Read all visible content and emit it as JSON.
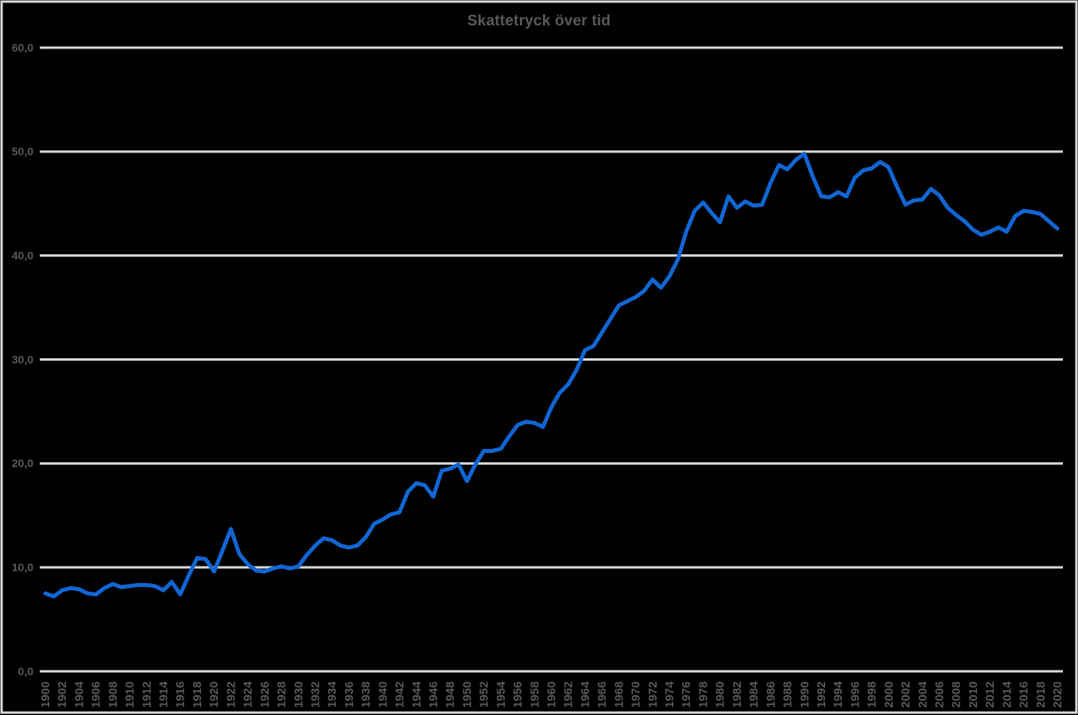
{
  "chart_data": {
    "type": "line",
    "title": "Skattetryck över tid",
    "xlabel": "",
    "ylabel": "",
    "xlim": [
      1900,
      2020
    ],
    "ylim": [
      0,
      60
    ],
    "grid": "horizontal",
    "legend": "none",
    "y_ticks": [
      0,
      10,
      20,
      30,
      40,
      50,
      60
    ],
    "y_tick_labels": [
      "0,0",
      "10,0",
      "20,0",
      "30,0",
      "40,0",
      "50,0",
      "60,0"
    ],
    "x_tick_step": 2,
    "x_tick_labels": [
      "1900",
      "1902",
      "1904",
      "1906",
      "1908",
      "1910",
      "1912",
      "1914",
      "1916",
      "1918",
      "1920",
      "1922",
      "1924",
      "1926",
      "1928",
      "1930",
      "1932",
      "1934",
      "1936",
      "1938",
      "1940",
      "1942",
      "1944",
      "1946",
      "1948",
      "1950",
      "1952",
      "1954",
      "1956",
      "1958",
      "1960",
      "1962",
      "1964",
      "1966",
      "1968",
      "1970",
      "1972",
      "1974",
      "1976",
      "1978",
      "1980",
      "1982",
      "1984",
      "1986",
      "1988",
      "1990",
      "1992",
      "1994",
      "1996",
      "1998",
      "2000",
      "2002",
      "2004",
      "2006",
      "2008",
      "2010",
      "2012",
      "2014",
      "2016",
      "2018",
      "2020"
    ],
    "series": [
      {
        "name": "Skattetryck",
        "x_start": 1900,
        "x_step": 1,
        "values": [
          7.5,
          7.2,
          7.8,
          8.0,
          7.9,
          7.5,
          7.4,
          8.0,
          8.4,
          8.1,
          8.2,
          8.3,
          8.3,
          8.2,
          7.8,
          8.6,
          7.4,
          9.2,
          10.9,
          10.8,
          9.6,
          11.6,
          13.7,
          11.3,
          10.3,
          9.7,
          9.6,
          9.9,
          10.1,
          9.9,
          10.1,
          11.2,
          12.1,
          12.8,
          12.6,
          12.1,
          11.9,
          12.1,
          12.9,
          14.2,
          14.6,
          15.1,
          15.3,
          17.3,
          18.1,
          17.9,
          16.8,
          19.3,
          19.5,
          19.9,
          18.3,
          19.9,
          21.2,
          21.2,
          21.4,
          22.6,
          23.7,
          24.0,
          23.9,
          23.5,
          25.4,
          26.8,
          27.6,
          29.0,
          30.9,
          31.3,
          32.6,
          33.9,
          35.2,
          35.6,
          36.0,
          36.6,
          37.7,
          36.9,
          38.0,
          39.6,
          42.3,
          44.3,
          45.1,
          44.1,
          43.2,
          45.7,
          44.6,
          45.2,
          44.8,
          44.9,
          47.0,
          48.7,
          48.3,
          49.2,
          49.8,
          47.6,
          45.7,
          45.6,
          46.1,
          45.7,
          47.5,
          48.2,
          48.4,
          49.0,
          48.5,
          46.6,
          44.9,
          45.3,
          45.4,
          46.4,
          45.8,
          44.6,
          43.9,
          43.3,
          42.5,
          42.0,
          42.3,
          42.7,
          42.3,
          43.8,
          44.3,
          44.2,
          44.0,
          43.3,
          42.6
        ]
      }
    ],
    "colors": {
      "background": "#000000",
      "line": "#1166D4",
      "grid": "#D9D9D9",
      "frame": "#D9D9D9",
      "text": "#595959"
    }
  }
}
